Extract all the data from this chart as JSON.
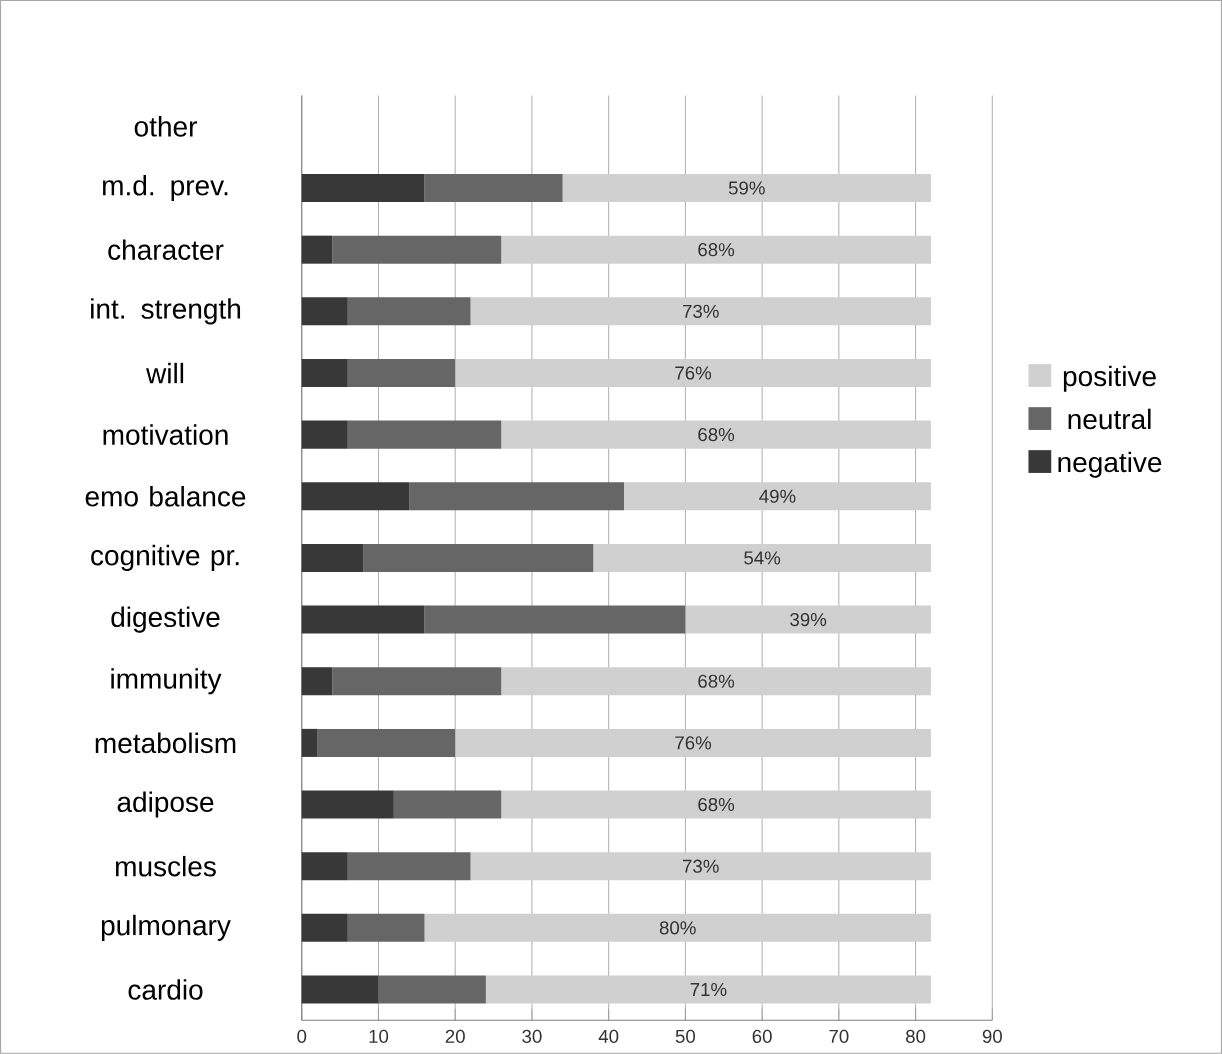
{
  "chart_data": {
    "type": "bar",
    "orientation": "horizontal",
    "stacked": true,
    "categories": [
      "other",
      "m.d. prev.",
      "character",
      "int. strength",
      "will",
      "motivation",
      "emo balance",
      "cognitive pr.",
      "digestive",
      "immunity",
      "metabolism",
      "adipose",
      "muscles",
      "pulmonary",
      "cardio"
    ],
    "series": [
      {
        "name": "negative",
        "color": "#383838",
        "values": [
          null,
          16,
          4,
          6,
          6,
          6,
          14,
          8,
          16,
          4,
          2,
          12,
          6,
          6,
          10
        ]
      },
      {
        "name": "neutral",
        "color": "#666666",
        "values": [
          null,
          18,
          22,
          16,
          14,
          20,
          28,
          30,
          34,
          22,
          18,
          14,
          16,
          10,
          14
        ]
      },
      {
        "name": "positive",
        "color": "#d0d0d0",
        "values": [
          null,
          48,
          56,
          60,
          62,
          56,
          40,
          44,
          32,
          56,
          62,
          56,
          60,
          66,
          58
        ]
      }
    ],
    "annotations": [
      "59%",
      "68%",
      "73%",
      "76%",
      "68%",
      "49%",
      "54%",
      "39%",
      "68%",
      "76%",
      "68%",
      "73%",
      "80%",
      "71%"
    ],
    "xlim": [
      0,
      90
    ],
    "xticks": [
      0,
      10,
      20,
      30,
      40,
      50,
      60,
      70,
      80,
      90
    ],
    "grid": "x",
    "legend": "right"
  }
}
